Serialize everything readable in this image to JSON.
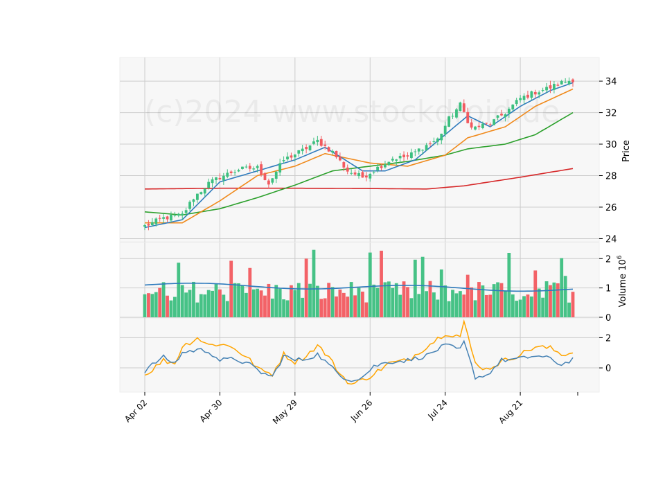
{
  "chart_data": {
    "type": "candlestick",
    "watermark": "(c)2024 www.stockdroid.de",
    "x_tick_labels": [
      "Apr 02",
      "Apr 30",
      "May 29",
      "Jun 26",
      "Jul 24",
      "Aug 21"
    ],
    "x_tick_indices": [
      0,
      20,
      40,
      60,
      80,
      100
    ],
    "price_panel": {
      "ylabel": "Price",
      "ylim": [
        23.8,
        35.5
      ],
      "yticks": [
        "24",
        "26",
        "28",
        "30",
        "32",
        "34"
      ],
      "grid": true,
      "ohlc_knots": [
        {
          "i": 0,
          "c": 24.8
        },
        {
          "i": 5,
          "c": 25.3
        },
        {
          "i": 10,
          "c": 25.5
        },
        {
          "i": 13,
          "c": 26.6
        },
        {
          "i": 17,
          "c": 27.5
        },
        {
          "i": 20,
          "c": 27.9
        },
        {
          "i": 25,
          "c": 28.4
        },
        {
          "i": 30,
          "c": 28.5
        },
        {
          "i": 33,
          "c": 27.5
        },
        {
          "i": 37,
          "c": 29.0
        },
        {
          "i": 42,
          "c": 29.6
        },
        {
          "i": 46,
          "c": 30.2
        },
        {
          "i": 50,
          "c": 29.5
        },
        {
          "i": 54,
          "c": 28.3
        },
        {
          "i": 58,
          "c": 27.9
        },
        {
          "i": 62,
          "c": 28.5
        },
        {
          "i": 66,
          "c": 29.1
        },
        {
          "i": 70,
          "c": 29.2
        },
        {
          "i": 74,
          "c": 29.8
        },
        {
          "i": 78,
          "c": 30.3
        },
        {
          "i": 81,
          "c": 31.6
        },
        {
          "i": 84,
          "c": 32.5
        },
        {
          "i": 87,
          "c": 31.0
        },
        {
          "i": 92,
          "c": 31.3
        },
        {
          "i": 96,
          "c": 32.0
        },
        {
          "i": 100,
          "c": 32.9
        },
        {
          "i": 104,
          "c": 33.3
        },
        {
          "i": 108,
          "c": 33.6
        },
        {
          "i": 111,
          "c": 33.9
        },
        {
          "i": 114,
          "c": 34.1
        }
      ],
      "sma_short_knots": [
        {
          "i": 0,
          "v": 24.7
        },
        {
          "i": 10,
          "v": 25.2
        },
        {
          "i": 20,
          "v": 27.6
        },
        {
          "i": 30,
          "v": 28.3
        },
        {
          "i": 40,
          "v": 29.0
        },
        {
          "i": 48,
          "v": 29.8
        },
        {
          "i": 58,
          "v": 28.3
        },
        {
          "i": 64,
          "v": 28.3
        },
        {
          "i": 72,
          "v": 29.0
        },
        {
          "i": 80,
          "v": 30.6
        },
        {
          "i": 86,
          "v": 31.8
        },
        {
          "i": 92,
          "v": 31.1
        },
        {
          "i": 100,
          "v": 32.4
        },
        {
          "i": 108,
          "v": 33.4
        },
        {
          "i": 114,
          "v": 33.9
        }
      ],
      "sma_mid_knots": [
        {
          "i": 0,
          "v": 25.0
        },
        {
          "i": 10,
          "v": 25.0
        },
        {
          "i": 20,
          "v": 26.4
        },
        {
          "i": 30,
          "v": 28.0
        },
        {
          "i": 40,
          "v": 28.6
        },
        {
          "i": 48,
          "v": 29.4
        },
        {
          "i": 60,
          "v": 28.8
        },
        {
          "i": 70,
          "v": 28.6
        },
        {
          "i": 80,
          "v": 29.3
        },
        {
          "i": 86,
          "v": 30.4
        },
        {
          "i": 96,
          "v": 31.1
        },
        {
          "i": 104,
          "v": 32.4
        },
        {
          "i": 114,
          "v": 33.5
        }
      ],
      "sma_long_knots": [
        {
          "i": 0,
          "v": 25.7
        },
        {
          "i": 10,
          "v": 25.5
        },
        {
          "i": 20,
          "v": 25.9
        },
        {
          "i": 30,
          "v": 26.6
        },
        {
          "i": 40,
          "v": 27.4
        },
        {
          "i": 50,
          "v": 28.3
        },
        {
          "i": 60,
          "v": 28.6
        },
        {
          "i": 70,
          "v": 28.9
        },
        {
          "i": 80,
          "v": 29.3
        },
        {
          "i": 86,
          "v": 29.7
        },
        {
          "i": 96,
          "v": 30.0
        },
        {
          "i": 104,
          "v": 30.6
        },
        {
          "i": 114,
          "v": 32.0
        }
      ],
      "sma_200_knots": [
        {
          "i": 0,
          "v": 27.15
        },
        {
          "i": 20,
          "v": 27.2
        },
        {
          "i": 40,
          "v": 27.2
        },
        {
          "i": 60,
          "v": 27.18
        },
        {
          "i": 75,
          "v": 27.15
        },
        {
          "i": 85,
          "v": 27.35
        },
        {
          "i": 100,
          "v": 27.9
        },
        {
          "i": 114,
          "v": 28.45
        }
      ]
    },
    "volume_panel": {
      "ylabel": "Volume  10",
      "ylabel_exponent": "6",
      "ylim": [
        0,
        2.55
      ],
      "yticks": [
        "0",
        "1",
        "2"
      ],
      "volume_avg": 1.1
    },
    "indicator_panel": {
      "ylim": [
        -1.6,
        3.3
      ],
      "yticks": [
        "0",
        "2"
      ],
      "line1_knots": [
        {
          "i": 0,
          "v": -0.2
        },
        {
          "i": 3,
          "v": 0.4
        },
        {
          "i": 5,
          "v": 0.7
        },
        {
          "i": 8,
          "v": 0.3
        },
        {
          "i": 10,
          "v": 1.0
        },
        {
          "i": 14,
          "v": 1.2
        },
        {
          "i": 17,
          "v": 1.1
        },
        {
          "i": 20,
          "v": 0.5
        },
        {
          "i": 24,
          "v": 0.6
        },
        {
          "i": 28,
          "v": 0.2
        },
        {
          "i": 31,
          "v": -0.3
        },
        {
          "i": 34,
          "v": -0.6
        },
        {
          "i": 37,
          "v": 0.8
        },
        {
          "i": 40,
          "v": 0.5
        },
        {
          "i": 43,
          "v": 0.6
        },
        {
          "i": 46,
          "v": 0.9
        },
        {
          "i": 49,
          "v": 0.2
        },
        {
          "i": 52,
          "v": -0.5
        },
        {
          "i": 55,
          "v": -0.8
        },
        {
          "i": 58,
          "v": -0.6
        },
        {
          "i": 61,
          "v": 0.1
        },
        {
          "i": 65,
          "v": 0.4
        },
        {
          "i": 70,
          "v": 0.5
        },
        {
          "i": 75,
          "v": 0.8
        },
        {
          "i": 80,
          "v": 1.5
        },
        {
          "i": 84,
          "v": 1.2
        },
        {
          "i": 85,
          "v": 1.7
        },
        {
          "i": 88,
          "v": -0.6
        },
        {
          "i": 91,
          "v": -0.5
        },
        {
          "i": 95,
          "v": 0.5
        },
        {
          "i": 100,
          "v": 0.6
        },
        {
          "i": 104,
          "v": 0.8
        },
        {
          "i": 108,
          "v": 0.6
        },
        {
          "i": 111,
          "v": 0.2
        },
        {
          "i": 114,
          "v": 0.6
        }
      ],
      "line2_knots": [
        {
          "i": 0,
          "v": -0.5
        },
        {
          "i": 3,
          "v": 0.1
        },
        {
          "i": 5,
          "v": 0.5
        },
        {
          "i": 8,
          "v": 0.3
        },
        {
          "i": 10,
          "v": 1.4
        },
        {
          "i": 14,
          "v": 2.0
        },
        {
          "i": 17,
          "v": 1.5
        },
        {
          "i": 20,
          "v": 1.6
        },
        {
          "i": 24,
          "v": 1.3
        },
        {
          "i": 28,
          "v": 0.5
        },
        {
          "i": 31,
          "v": -0.2
        },
        {
          "i": 34,
          "v": -0.4
        },
        {
          "i": 37,
          "v": 0.9
        },
        {
          "i": 40,
          "v": 0.4
        },
        {
          "i": 43,
          "v": 0.8
        },
        {
          "i": 46,
          "v": 1.5
        },
        {
          "i": 49,
          "v": 0.7
        },
        {
          "i": 52,
          "v": -0.4
        },
        {
          "i": 55,
          "v": -1.1
        },
        {
          "i": 58,
          "v": -0.8
        },
        {
          "i": 61,
          "v": -0.4
        },
        {
          "i": 65,
          "v": 0.3
        },
        {
          "i": 70,
          "v": 0.5
        },
        {
          "i": 75,
          "v": 1.4
        },
        {
          "i": 80,
          "v": 2.3
        },
        {
          "i": 84,
          "v": 2.1
        },
        {
          "i": 85,
          "v": 3.0
        },
        {
          "i": 88,
          "v": 0.3
        },
        {
          "i": 91,
          "v": -0.1
        },
        {
          "i": 95,
          "v": 0.4
        },
        {
          "i": 100,
          "v": 0.9
        },
        {
          "i": 104,
          "v": 1.4
        },
        {
          "i": 108,
          "v": 1.3
        },
        {
          "i": 111,
          "v": 0.9
        },
        {
          "i": 114,
          "v": 1.0
        }
      ]
    },
    "colors": {
      "up": "#3cbf7f",
      "down": "#f25a5f",
      "sma_short": "#2f7bbd",
      "sma_mid": "#f08a1c",
      "sma_long": "#2ca02c",
      "sma_200": "#d62728",
      "volume_avg": "#2f7bbd",
      "indicator1": "#4682b4",
      "indicator2": "#ffa500",
      "panel_bg": "#f7f7f7",
      "grid": "#cccccc"
    }
  }
}
